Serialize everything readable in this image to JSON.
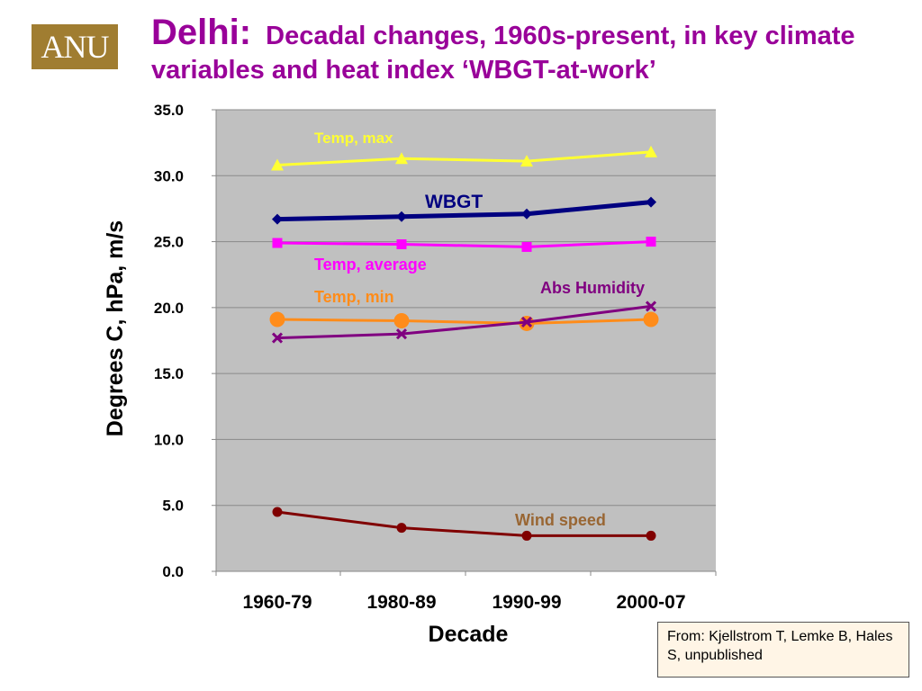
{
  "logo": {
    "text": "ANU"
  },
  "slide": {
    "title_main": "Delhi:",
    "title_sub": "Decadal changes, 1960s-present, in key climate variables and heat index ‘WBGT-at-work’",
    "source": "From: Kjellstrom T, Lemke B, Hales S, unpublished"
  },
  "chart_data": {
    "type": "line",
    "categories": [
      "1960-79",
      "1980-89",
      "1990-99",
      "2000-07"
    ],
    "xlabel": "Decade",
    "ylabel": "Degrees C,  hPa,  m/s",
    "ylim": [
      0,
      35
    ],
    "yticks": [
      0,
      5,
      10,
      15,
      20,
      25,
      30,
      35
    ],
    "ytick_labels": [
      "0.0",
      "5.0",
      "10.0",
      "15.0",
      "20.0",
      "25.0",
      "30.0",
      "35.0"
    ],
    "grid": true,
    "plot_background": "#c0c0c0",
    "series": [
      {
        "name": "Temp, max",
        "values": [
          30.8,
          31.3,
          31.1,
          31.8
        ],
        "color": "#ffff33",
        "marker": "triangle"
      },
      {
        "name": "WBGT",
        "values": [
          26.7,
          26.9,
          27.1,
          28.0
        ],
        "color": "#000080",
        "marker": "diamond"
      },
      {
        "name": "Temp, average",
        "values": [
          24.9,
          24.8,
          24.6,
          25.0
        ],
        "color": "#ff00ff",
        "marker": "square"
      },
      {
        "name": "Temp, min",
        "values": [
          19.1,
          19.0,
          18.8,
          19.1
        ],
        "color": "#ff8c1a",
        "marker": "circle"
      },
      {
        "name": "Abs Humidity",
        "values": [
          17.7,
          18.0,
          18.9,
          20.1
        ],
        "color": "#800080",
        "marker": "x"
      },
      {
        "name": "Wind speed",
        "values": [
          4.5,
          3.3,
          2.7,
          2.7
        ],
        "color": "#800000",
        "marker": "circle-small"
      }
    ],
    "annotations": [
      {
        "text": "Temp, max",
        "color": "#ffff33"
      },
      {
        "text": "WBGT",
        "color": "#000080"
      },
      {
        "text": "Temp, average",
        "color": "#ff00ff"
      },
      {
        "text": "Temp, min",
        "color": "#ff8c1a"
      },
      {
        "text": "Abs Humidity",
        "color": "#800080"
      },
      {
        "text": "Wind speed",
        "color": "#996633"
      }
    ]
  }
}
